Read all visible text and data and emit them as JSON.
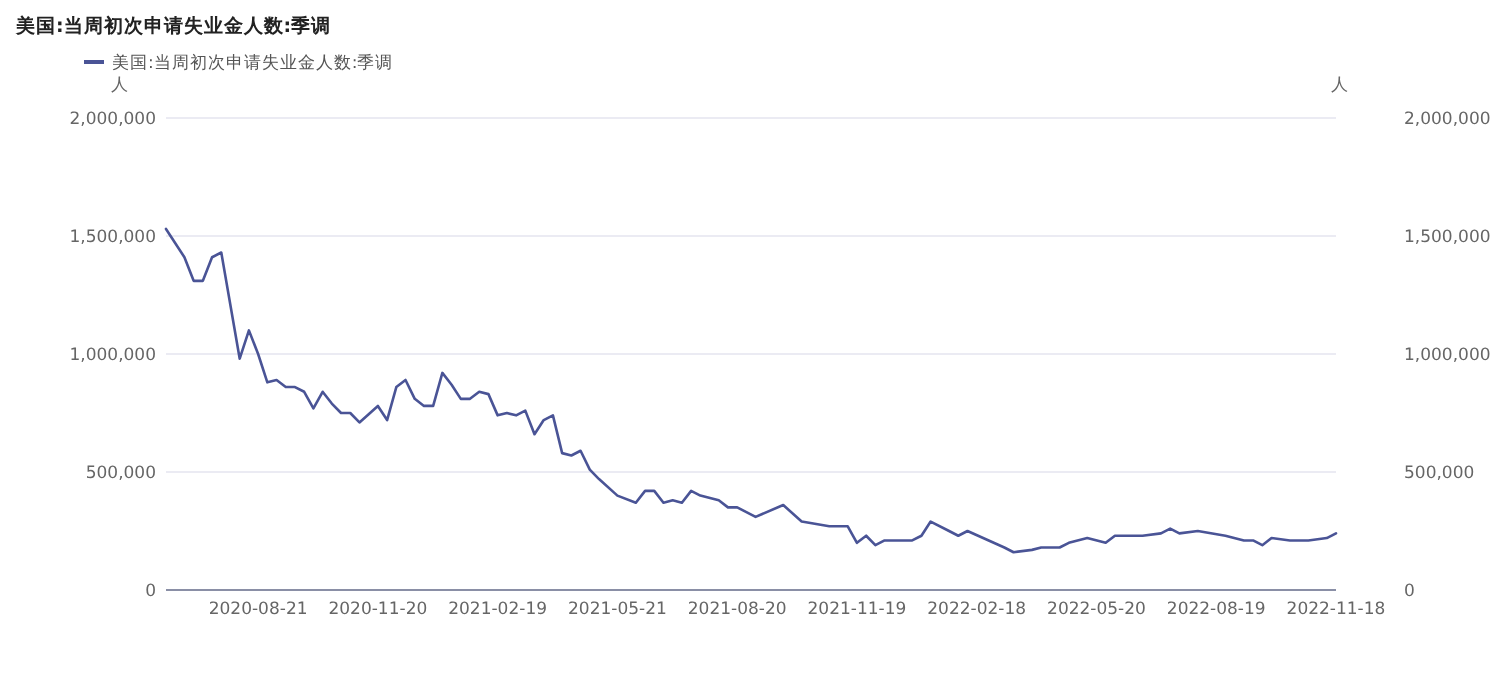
{
  "chart_data": {
    "type": "line",
    "title": "美国:当周初次申请失业金人数:季调",
    "ylabel": "人",
    "y2label": "人",
    "legend": "top left",
    "grid": "y",
    "xlim": [
      "2020-06-12",
      "2022-11-18"
    ],
    "xticks": [
      "2020-08-21",
      "2020-11-20",
      "2021-02-19",
      "2021-05-21",
      "2021-08-20",
      "2021-11-19",
      "2022-02-18",
      "2022-05-20",
      "2022-08-19",
      "2022-11-18"
    ],
    "ylim": [
      0,
      2000000
    ],
    "yticks": [
      0,
      {
        "value": 500000,
        "label": "500,000"
      },
      {
        "value": 1000000,
        "label": "1,000,000"
      },
      {
        "value": 1500000,
        "label": "1,500,000"
      },
      {
        "value": 2000000,
        "label": "2,000,000"
      }
    ],
    "y2lim": [
      0,
      2000000
    ],
    "y2ticks": [
      0,
      {
        "value": 500000,
        "label": "500,000"
      },
      {
        "value": 1000000,
        "label": "1,000,000"
      },
      {
        "value": 1500000,
        "label": "1,500,000"
      },
      {
        "value": 2000000,
        "label": "2,000,000"
      }
    ],
    "series": [
      {
        "name": "美国:当周初次申请失业金人数:季调",
        "color": "#4a5496",
        "x": [
          "2020-06-12",
          "2020-06-26",
          "2020-07-03",
          "2020-07-10",
          "2020-07-17",
          "2020-07-24",
          "2020-08-07",
          "2020-08-14",
          "2020-08-21",
          "2020-08-28",
          "2020-09-04",
          "2020-09-11",
          "2020-09-18",
          "2020-09-25",
          "2020-10-02",
          "2020-10-09",
          "2020-10-16",
          "2020-10-23",
          "2020-10-30",
          "2020-11-06",
          "2020-11-20",
          "2020-11-27",
          "2020-12-04",
          "2020-12-11",
          "2020-12-18",
          "2020-12-25",
          "2021-01-01",
          "2021-01-08",
          "2021-01-15",
          "2021-01-22",
          "2021-01-29",
          "2021-02-05",
          "2021-02-12",
          "2021-02-19",
          "2021-02-26",
          "2021-03-05",
          "2021-03-12",
          "2021-03-19",
          "2021-03-26",
          "2021-04-02",
          "2021-04-09",
          "2021-04-16",
          "2021-04-23",
          "2021-04-30",
          "2021-05-07",
          "2021-05-21",
          "2021-06-04",
          "2021-06-11",
          "2021-06-18",
          "2021-06-25",
          "2021-07-02",
          "2021-07-09",
          "2021-07-16",
          "2021-07-23",
          "2021-08-06",
          "2021-08-13",
          "2021-08-20",
          "2021-09-03",
          "2021-09-24",
          "2021-10-08",
          "2021-10-29",
          "2021-11-12",
          "2021-11-19",
          "2021-11-26",
          "2021-12-03",
          "2021-12-10",
          "2021-12-31",
          "2022-01-07",
          "2022-01-14",
          "2022-01-28",
          "2022-02-04",
          "2022-02-11",
          "2022-03-11",
          "2022-03-18",
          "2022-04-01",
          "2022-04-08",
          "2022-04-22",
          "2022-04-29",
          "2022-05-13",
          "2022-05-27",
          "2022-06-03",
          "2022-06-24",
          "2022-07-08",
          "2022-07-15",
          "2022-07-22",
          "2022-08-05",
          "2022-08-26",
          "2022-09-09",
          "2022-09-16",
          "2022-09-23",
          "2022-09-30",
          "2022-10-14",
          "2022-10-28",
          "2022-11-11",
          "2022-11-18"
        ],
        "values": [
          1530000,
          1410000,
          1310000,
          1310000,
          1410000,
          1430000,
          980000,
          1100000,
          1000000,
          880000,
          890000,
          860000,
          860000,
          840000,
          770000,
          840000,
          790000,
          750000,
          750000,
          710000,
          780000,
          720000,
          860000,
          890000,
          810000,
          780000,
          780000,
          920000,
          870000,
          810000,
          810000,
          840000,
          830000,
          740000,
          750000,
          740000,
          760000,
          660000,
          720000,
          740000,
          580000,
          570000,
          590000,
          510000,
          470000,
          400000,
          370000,
          420000,
          420000,
          370000,
          380000,
          370000,
          420000,
          400000,
          380000,
          350000,
          350000,
          310000,
          360000,
          290000,
          270000,
          270000,
          200000,
          230000,
          190000,
          210000,
          210000,
          230000,
          290000,
          250000,
          230000,
          250000,
          180000,
          160000,
          170000,
          180000,
          180000,
          200000,
          220000,
          200000,
          230000,
          230000,
          240000,
          260000,
          240000,
          250000,
          230000,
          210000,
          210000,
          190000,
          220000,
          210000,
          210000,
          220000,
          240000
        ]
      }
    ]
  }
}
